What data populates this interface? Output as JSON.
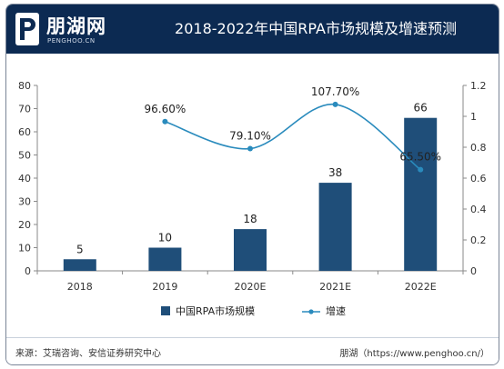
{
  "header": {
    "brand_name": "朋湖网",
    "brand_sub": "PENGHOO.CN",
    "title": "2018-2022年中国RPA市场规模及增速预测"
  },
  "footer": {
    "source": "来源：艾瑞咨询、安信证券研究中心",
    "credit": "朋湖（https://www.penghoo.cn/）"
  },
  "colors": {
    "header_bg": "#0c2a52",
    "bar": "#1f4e79",
    "line": "#2a8bbd"
  },
  "chart_data": {
    "type": "bar+line",
    "categories": [
      "2018",
      "2019",
      "2020E",
      "2021E",
      "2022E"
    ],
    "bar_series": {
      "name": "中国RPA市场规模",
      "values": [
        5,
        10,
        18,
        38,
        66
      ],
      "labels": [
        "5",
        "10",
        "18",
        "38",
        "66"
      ]
    },
    "line_series": {
      "name": "增速",
      "values": [
        null,
        0.966,
        0.791,
        1.077,
        0.655
      ],
      "labels": [
        "",
        "96.60%",
        "79.10%",
        "107.70%",
        "65.50%"
      ]
    },
    "y_left": {
      "ylim": [
        0,
        80
      ],
      "ticks": [
        "0",
        "10",
        "20",
        "30",
        "40",
        "50",
        "60",
        "70",
        "80"
      ]
    },
    "y_right": {
      "ylim": [
        0,
        1.2
      ],
      "ticks": [
        "0",
        "0.2",
        "0.4",
        "0.6",
        "0.8",
        "1",
        "1.2"
      ]
    },
    "legend_position": "bottom",
    "grid": false
  }
}
